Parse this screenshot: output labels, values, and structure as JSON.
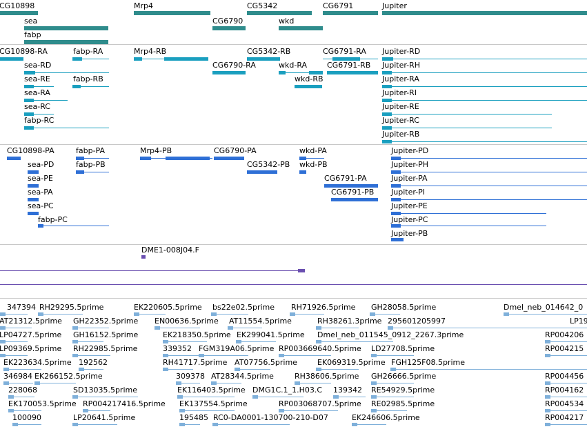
{
  "colors": {
    "gene": "#2f8c8c",
    "transcript": "#1a9fbf",
    "protein": "#2e6fd6",
    "clone": "#6a4fb0",
    "est": "#7fb0da",
    "separator": "#c8c8c8"
  },
  "gene_labels": [
    "CG10898",
    "sea",
    "fabp",
    "Mrp4",
    "CG5342",
    "CG6790",
    "wkd",
    "CG6791",
    "Jupiter"
  ],
  "transcript_labels": [
    "CG10898-RA",
    "fabp-RA",
    "Mrp4-RB",
    "CG5342-RB",
    "CG6791-RA",
    "Jupiter-RD",
    "sea-RD",
    "CG6790-RA",
    "wkd-RA",
    "CG6791-RB",
    "Jupiter-RH",
    "sea-RE",
    "fabp-RB",
    "wkd-RB",
    "Jupiter-RA",
    "sea-RA",
    "Jupiter-RI",
    "sea-RC",
    "Jupiter-RE",
    "fabp-RC",
    "Jupiter-RC",
    "Jupiter-RB"
  ],
  "protein_labels": [
    "CG10898-PA",
    "fabp-PA",
    "Mrp4-PB",
    "CG6790-PA",
    "wkd-PA",
    "Jupiter-PD",
    "sea-PD",
    "fabp-PB",
    "CG5342-PB",
    "wkd-PB",
    "Jupiter-PH",
    "sea-PE",
    "CG6791-PA",
    "Jupiter-PA",
    "sea-PA",
    "CG6791-PB",
    "Jupiter-PI",
    "sea-PC",
    "Jupiter-PE",
    "fabp-PC",
    "Jupiter-PC",
    "Jupiter-PB"
  ],
  "clone_labels": [
    "DME1-008J04.F"
  ],
  "est_labels": [
    "347394",
    "RH29295.5prime",
    "EK220605.5prime",
    "bs22e02.5prime",
    "RH71926.5prime",
    "GH28058.5prime",
    "Dmel_neb_014642_0",
    "AT21312.5prime",
    "GH22352.5prime",
    "EN00636.5prime",
    "AT11554.5prime",
    "RH38261.3prime",
    "295601205997",
    "LP19",
    "LP04727.5prime",
    "GH16152.5prime",
    "EK218350.5prime",
    "EK299041.5prime",
    "Dmel_neb_011545_0912_2267.3prime",
    "RP004206",
    "LP09369.5prime",
    "RH22985.5prime",
    "339352",
    "FGM319A06.5prime",
    "RP003669640.5prime",
    "LD27708.5prime",
    "RP004215",
    "EK223634.5prime",
    "192562",
    "RH41717.5prime",
    "AT07756.5prime",
    "EK069319.5prime",
    "FGH125F08.5prime",
    "346984",
    "EK266152.5prime",
    "309378",
    "AT28344.5prime",
    "RH38606.5prime",
    "GH26666.5prime",
    "RP004456",
    "228068",
    "SD13035.5prime",
    "EK116403.5prime",
    "DMG1C.1_1.H03.C",
    "139342",
    "RE54929.5prime",
    "RP004162",
    "EK170053.5prime",
    "RP004217416.5prime",
    "EK137554.5prime",
    "RP003068707.5prime",
    "RE02985.5prime",
    "RP004534",
    "100090",
    "LP20641.5prime",
    "195485",
    "RC0-DA0001-130700-210-D07",
    "EK246606.5prime",
    "RP004217"
  ]
}
